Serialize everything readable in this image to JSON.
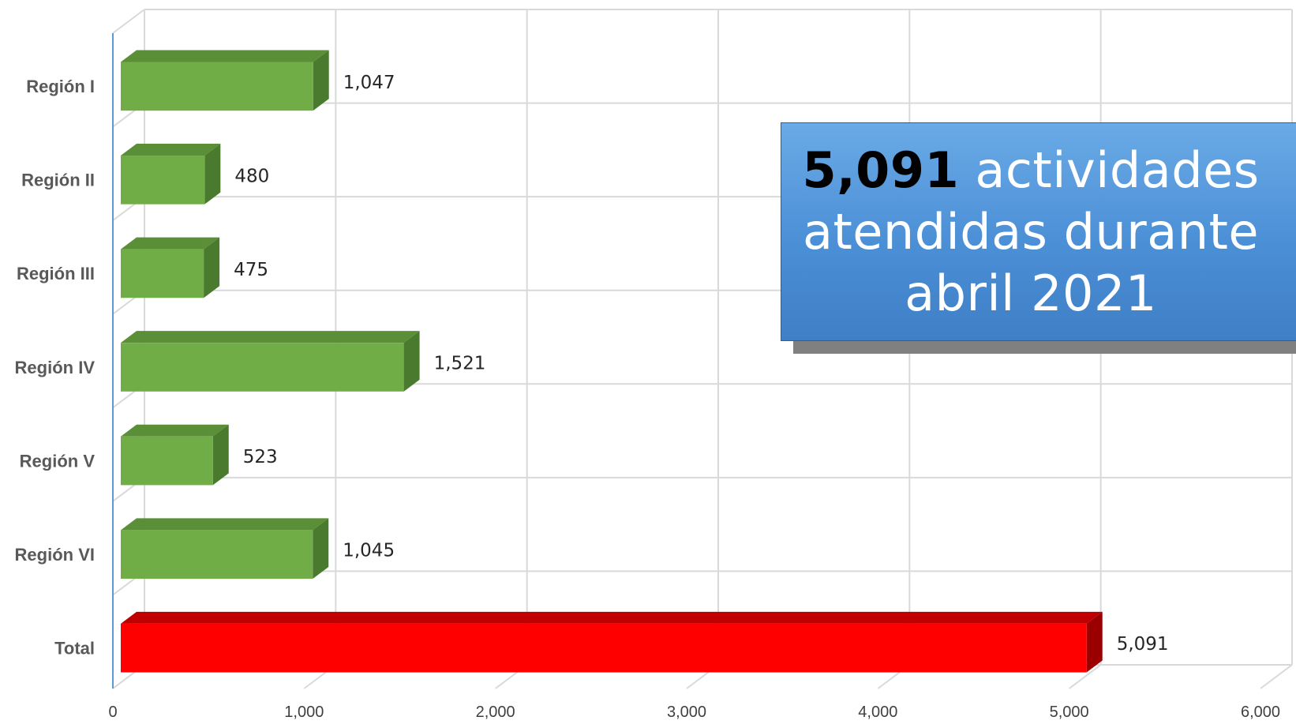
{
  "chart_data": {
    "type": "bar",
    "orientation": "horizontal",
    "categories": [
      "Región I",
      "Región II",
      "Región III",
      "Región IV",
      "Región V",
      "Región VI",
      "Total"
    ],
    "values": [
      1047,
      480,
      475,
      1521,
      523,
      1045,
      5091
    ],
    "data_labels": [
      "1,047",
      "480",
      "475",
      "1,521",
      "523",
      "1,045",
      "5,091"
    ],
    "xlim": [
      0,
      6000
    ],
    "x_ticks": [
      0,
      1000,
      2000,
      3000,
      4000,
      5000,
      6000
    ],
    "x_tick_labels": [
      "0",
      "1,000",
      "2,000",
      "3,000",
      "4,000",
      "5,000",
      "6,000"
    ],
    "grid": true,
    "legend": "none",
    "colors": {
      "region_bar": "#70ad47",
      "region_bar_top": "#5a8f38",
      "region_bar_side": "#4a7a2e",
      "total_bar": "#ff0000",
      "total_bar_top": "#c00000",
      "total_bar_side": "#9a0000",
      "gridline": "#d9d9d9",
      "axis": "#5b9bd5"
    }
  },
  "callout": {
    "number": "5,091",
    "text": "actividades atendidas durante abril 2021",
    "background": "#4b8fd6"
  }
}
